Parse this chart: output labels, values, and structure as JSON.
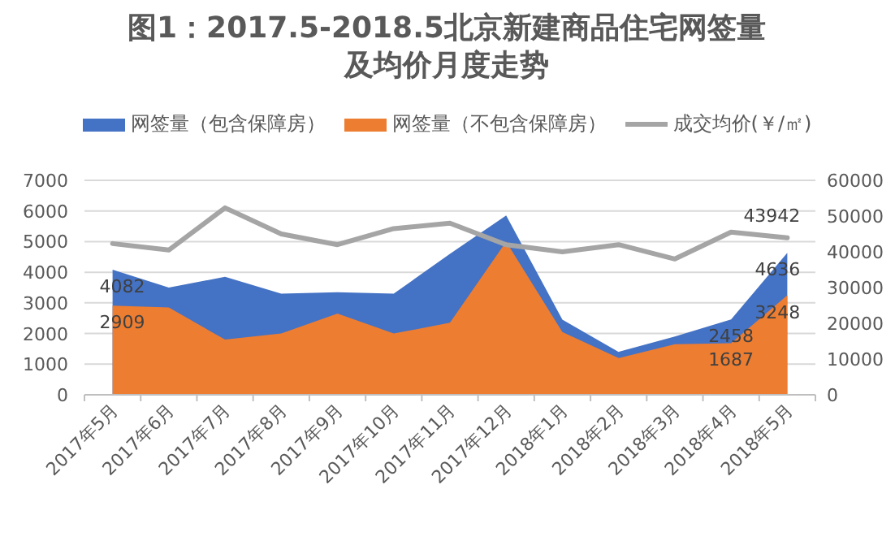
{
  "chart_data": {
    "type": "area",
    "title": "图1：2017.5-2018.5北京新建商品住宅网签量及均价月度走势",
    "categories": [
      "2017年5月",
      "2017年6月",
      "2017年7月",
      "2017年8月",
      "2017年9月",
      "2017年10月",
      "2017年11月",
      "2017年12月",
      "2018年1月",
      "2018年2月",
      "2018年3月",
      "2018年4月",
      "2018年5月"
    ],
    "series": [
      {
        "name": "网签量（包含保障房）",
        "color": "#4472c4",
        "values": [
          4082,
          3500,
          3850,
          3300,
          3350,
          3300,
          4600,
          5850,
          2450,
          1400,
          1900,
          2458,
          4636
        ],
        "value_labels": [
          "4082",
          null,
          null,
          null,
          null,
          null,
          null,
          null,
          null,
          null,
          null,
          "2458",
          "4636"
        ]
      },
      {
        "name": "网签量（不包含保障房）",
        "color": "#ed7d31",
        "values": [
          2909,
          2850,
          1800,
          2000,
          2650,
          2000,
          2350,
          5000,
          2050,
          1200,
          1650,
          1687,
          3248
        ],
        "value_labels": [
          "2909",
          null,
          null,
          null,
          null,
          null,
          null,
          null,
          null,
          null,
          null,
          "1687",
          "3248"
        ]
      },
      {
        "name": "成交均价(￥/㎡)",
        "type": "line",
        "axis": "y2",
        "color": "#a5a5a5",
        "values": [
          42300,
          40500,
          52300,
          45000,
          42000,
          46500,
          48000,
          42000,
          40000,
          42000,
          38000,
          45500,
          43942
        ],
        "value_labels": [
          null,
          null,
          null,
          null,
          null,
          null,
          null,
          null,
          null,
          null,
          null,
          null,
          "43942"
        ]
      }
    ],
    "ylim": [
      0,
      7000
    ],
    "yticks": [
      0,
      1000,
      2000,
      3000,
      4000,
      5000,
      6000,
      7000
    ],
    "y2lim": [
      0,
      60000
    ],
    "y2ticks": [
      0,
      10000,
      20000,
      30000,
      40000,
      50000,
      60000
    ],
    "grid": "y",
    "legend": "top"
  }
}
